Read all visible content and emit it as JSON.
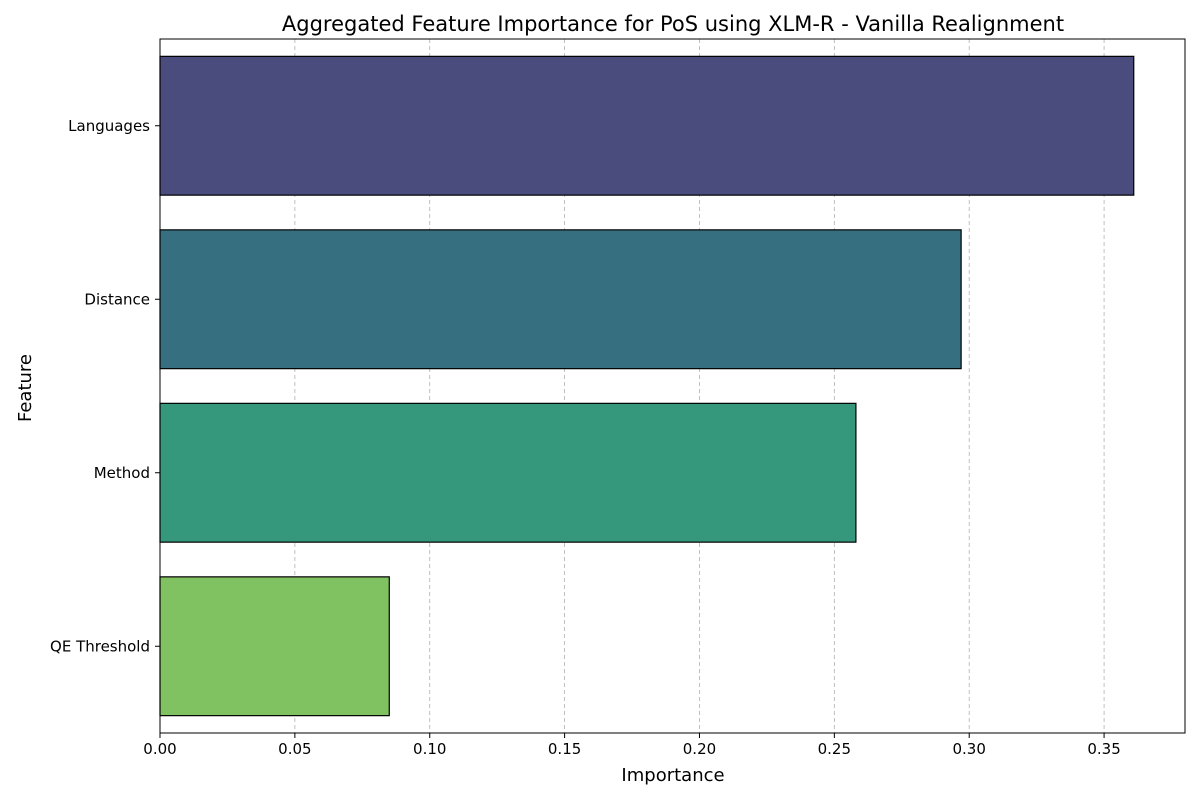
{
  "chart_data": {
    "type": "bar",
    "orientation": "horizontal",
    "title": "Aggregated Feature Importance for PoS using XLM-R - Vanilla Realignment",
    "xlabel": "Importance",
    "ylabel": "Feature",
    "categories": [
      "Languages",
      "Distance",
      "Method",
      "QE Threshold"
    ],
    "values": [
      0.361,
      0.297,
      0.258,
      0.085
    ],
    "colors": [
      "#4a4c7d",
      "#366f80",
      "#35977b",
      "#80c262"
    ],
    "xlim": [
      0,
      0.38
    ],
    "xticks": [
      "0.00",
      "0.05",
      "0.10",
      "0.15",
      "0.20",
      "0.25",
      "0.30",
      "0.35"
    ],
    "grid": "x, dashed",
    "legend": "none"
  }
}
